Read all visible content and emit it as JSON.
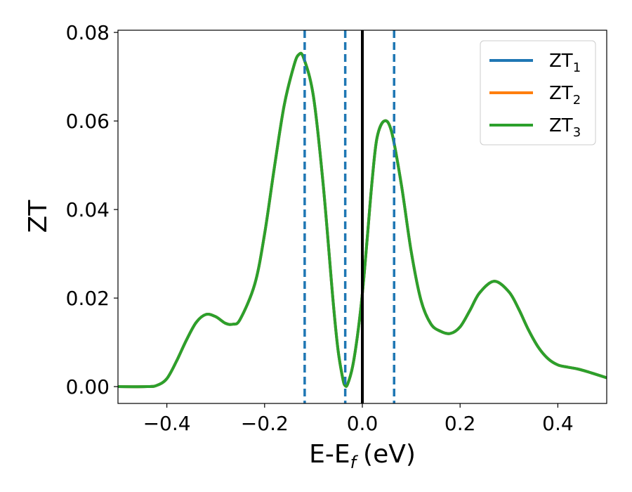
{
  "chart_data": {
    "type": "line",
    "xlabel": "E-E",
    "xlabel_sub": "f",
    "xlabel_unit": "(eV)",
    "ylabel": "ZT",
    "xlim": [
      -0.5,
      0.5
    ],
    "ylim": [
      -0.0038,
      0.0805
    ],
    "xticks": [
      -0.4,
      -0.2,
      0.0,
      0.2,
      0.4
    ],
    "xtick_labels": [
      "−0.4",
      "−0.2",
      "0.0",
      "0.2",
      "0.4"
    ],
    "yticks": [
      0.0,
      0.02,
      0.04,
      0.06,
      0.08
    ],
    "ytick_labels": [
      "0.00",
      "0.02",
      "0.04",
      "0.06",
      "0.08"
    ],
    "grid": false,
    "legend_position": "top-right",
    "series": [
      {
        "name": "ZT",
        "sub": "1",
        "color": "#1f77b4"
      },
      {
        "name": "ZT",
        "sub": "2",
        "color": "#ff7f0e"
      },
      {
        "name": "ZT",
        "sub": "3",
        "color": "#2ca02c"
      }
    ],
    "x": [
      -0.5,
      -0.44,
      -0.42,
      -0.4,
      -0.38,
      -0.36,
      -0.34,
      -0.32,
      -0.3,
      -0.28,
      -0.265,
      -0.25,
      -0.22,
      -0.2,
      -0.18,
      -0.16,
      -0.14,
      -0.13,
      -0.12,
      -0.1,
      -0.08,
      -0.06,
      -0.05,
      -0.04,
      -0.035,
      -0.03,
      -0.02,
      -0.01,
      0.0,
      0.01,
      0.02,
      0.03,
      0.045,
      0.06,
      0.08,
      0.1,
      0.12,
      0.14,
      0.16,
      0.18,
      0.2,
      0.22,
      0.24,
      0.27,
      0.3,
      0.32,
      0.34,
      0.36,
      0.38,
      0.4,
      0.42,
      0.44,
      0.46,
      0.48,
      0.5
    ],
    "y": [
      0.0,
      0.0,
      0.0003,
      0.0018,
      0.0058,
      0.0105,
      0.0145,
      0.0163,
      0.0158,
      0.0143,
      0.0141,
      0.0152,
      0.0232,
      0.0345,
      0.0495,
      0.0635,
      0.0725,
      0.075,
      0.0742,
      0.0655,
      0.0455,
      0.0195,
      0.0085,
      0.0018,
      0.0002,
      0.0006,
      0.0045,
      0.0115,
      0.021,
      0.0335,
      0.0465,
      0.0562,
      0.06,
      0.0575,
      0.0455,
      0.0305,
      0.0195,
      0.0142,
      0.0125,
      0.012,
      0.0135,
      0.0172,
      0.0212,
      0.0238,
      0.0214,
      0.0175,
      0.0128,
      0.0089,
      0.0063,
      0.0049,
      0.0044,
      0.004,
      0.0034,
      0.0027,
      0.002
    ],
    "vlines_dashed": [
      -0.118,
      -0.035,
      0.065
    ],
    "vline_dashed_color": "#1f77b4",
    "vline_solid": 0.0,
    "vline_solid_color": "#000000"
  }
}
